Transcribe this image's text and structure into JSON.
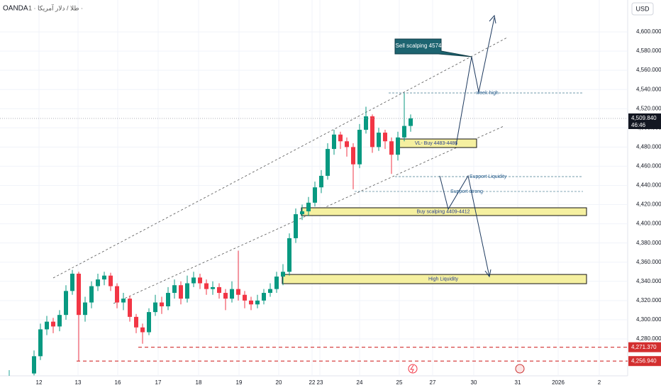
{
  "chart_data": {
    "type": "candlestick",
    "source": "OANDA",
    "title": "طلا / دلار آمریکا · 1 ·",
    "currency": "USD",
    "x_labels": [
      "12",
      "13",
      "16",
      "17",
      "18",
      "19",
      "20",
      "22",
      "23",
      "24",
      "25",
      "27",
      "30",
      "31",
      "2026",
      "2"
    ],
    "open": [
      4244,
      4262,
      4290,
      4298,
      4293,
      4305,
      4330,
      4348,
      4305,
      4318,
      4335,
      4342,
      4346,
      4335,
      4318,
      4322,
      4303,
      4292,
      4287,
      4308,
      4318,
      4314,
      4328,
      4336,
      4322,
      4338,
      4344,
      4338,
      4332,
      4334,
      4328,
      4322,
      4332,
      4326,
      4320,
      4316,
      4320,
      4328,
      4332,
      4345,
      4350,
      4385,
      4410,
      4413,
      4422,
      4438,
      4450,
      4478,
      4493,
      4486,
      4480,
      4462,
      4498,
      4512,
      4480,
      4495,
      4486,
      4472,
      4490,
      4502
    ],
    "high": [
      4268,
      4296,
      4304,
      4302,
      4310,
      4336,
      4352,
      4350,
      4324,
      4340,
      4348,
      4350,
      4349,
      4338,
      4328,
      4325,
      4306,
      4296,
      4312,
      4326,
      4324,
      4334,
      4342,
      4340,
      4346,
      4350,
      4348,
      4342,
      4340,
      4338,
      4332,
      4340,
      4372,
      4330,
      4324,
      4326,
      4332,
      4338,
      4350,
      4358,
      4390,
      4416,
      4420,
      4428,
      4444,
      4456,
      4484,
      4498,
      4496,
      4490,
      4484,
      4504,
      4522,
      4514,
      4500,
      4498,
      4490,
      4496,
      4536,
      4514
    ],
    "low": [
      4242,
      4258,
      4284,
      4286,
      4288,
      4300,
      4326,
      4257,
      4298,
      4312,
      4330,
      4336,
      4330,
      4312,
      4310,
      4298,
      4286,
      4275,
      4284,
      4304,
      4306,
      4310,
      4322,
      4316,
      4318,
      4334,
      4332,
      4326,
      4326,
      4322,
      4310,
      4318,
      4320,
      4312,
      4310,
      4312,
      4316,
      4324,
      4328,
      4336,
      4346,
      4380,
      4404,
      4408,
      4418,
      4432,
      4446,
      4472,
      4478,
      4470,
      4436,
      4458,
      4494,
      4474,
      4476,
      4478,
      4452,
      4466,
      4486,
      4496
    ],
    "close": [
      4262,
      4290,
      4298,
      4293,
      4305,
      4330,
      4348,
      4305,
      4318,
      4335,
      4342,
      4346,
      4335,
      4318,
      4322,
      4303,
      4292,
      4287,
      4308,
      4318,
      4314,
      4328,
      4336,
      4322,
      4338,
      4344,
      4338,
      4332,
      4334,
      4328,
      4322,
      4332,
      4326,
      4320,
      4316,
      4320,
      4328,
      4332,
      4345,
      4350,
      4385,
      4410,
      4413,
      4422,
      4438,
      4450,
      4478,
      4493,
      4486,
      4480,
      4462,
      4498,
      4512,
      4480,
      4495,
      4486,
      4472,
      4490,
      4502,
      4510
    ],
    "up_color": "#089981",
    "down_color": "#f23645",
    "ylim": [
      4241.56,
      4633.26
    ],
    "yticks": [
      {
        "value": 4280,
        "label": "4,280.000"
      },
      {
        "value": 4300,
        "label": "4,300.000"
      },
      {
        "value": 4320,
        "label": "4,320.000"
      },
      {
        "value": 4340,
        "label": "4,340.000"
      },
      {
        "value": 4360,
        "label": "4,360.000"
      },
      {
        "value": 4380,
        "label": "4,380.000"
      },
      {
        "value": 4400,
        "label": "4,400.000"
      },
      {
        "value": 4420,
        "label": "4,420.000"
      },
      {
        "value": 4440,
        "label": "4,440.000"
      },
      {
        "value": 4460,
        "label": "4,460.000"
      },
      {
        "value": 4480,
        "label": "4,480.000"
      },
      {
        "value": 4500,
        "label": "4,500.000"
      },
      {
        "value": 4520,
        "label": "4,520.000"
      },
      {
        "value": 4540,
        "label": "4,540.000"
      },
      {
        "value": 4560,
        "label": "4,560.000"
      },
      {
        "value": 4580,
        "label": "4,580.000"
      },
      {
        "value": 4600,
        "label": "4,600.000"
      }
    ],
    "last_price": {
      "value": 4509.84,
      "label": "4,509.840"
    },
    "countdown": "46:46",
    "levels": [
      {
        "value": 4271.37,
        "label": "4,271.370"
      },
      {
        "value": 4256.94,
        "label": "4,256.940"
      }
    ],
    "zones": [
      {
        "label": "VL- Buy 4483-4486",
        "range": [
          4479.5,
          4488.4
        ]
      },
      {
        "label": "Buy scalping 4409-4412",
        "range": [
          4408.6,
          4416.7
        ]
      },
      {
        "label": "High Liquidity",
        "range": [
          4337.6,
          4347.2
        ]
      }
    ],
    "lines": [
      {
        "label": "week high",
        "value": 4536.4
      },
      {
        "label": "Support Liquidity",
        "value": 4449.2
      },
      {
        "label": "Support strong",
        "value": 4433.7
      }
    ],
    "callout": "Sell scalping 4574"
  }
}
